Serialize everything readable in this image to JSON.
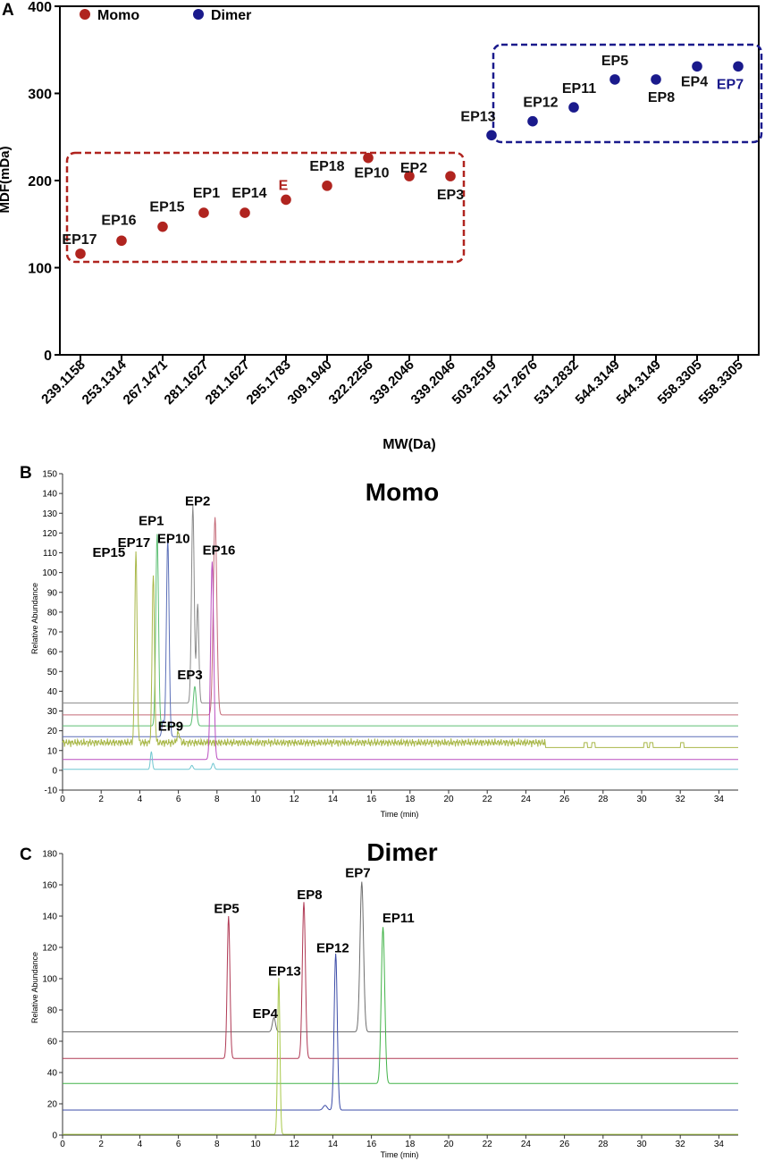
{
  "chart_data": [
    {
      "panel": "A",
      "type": "scatter",
      "xlabel": "MW(Da)",
      "ylabel": "MDF(mDa)",
      "ylim": [
        0,
        400
      ],
      "yticks": [
        "0",
        "100",
        "200",
        "300",
        "400"
      ],
      "categories": [
        "239.1158",
        "253.1314",
        "267.1471",
        "281.1627",
        "281.1627",
        "295.1783",
        "309.1940",
        "322.2256",
        "339.2046",
        "339.2046",
        "503.2519",
        "517.2676",
        "531.2832",
        "544.3149",
        "544.3149",
        "558.3305",
        "558.3305"
      ],
      "legend": [
        {
          "name": "Momo",
          "color": "#b0241f"
        },
        {
          "name": "Dimer",
          "color": "#1a1a8c"
        }
      ],
      "series": [
        {
          "name": "Momo",
          "color": "#b0241f",
          "points": [
            {
              "label": "EP17",
              "x": 0,
              "y": 116
            },
            {
              "label": "EP16",
              "x": 1,
              "y": 131
            },
            {
              "label": "EP15",
              "x": 2,
              "y": 147
            },
            {
              "label": "EP1",
              "x": 3,
              "y": 163
            },
            {
              "label": "EP14",
              "x": 4,
              "y": 163
            },
            {
              "label": "E",
              "x": 5,
              "y": 178
            },
            {
              "label": "EP18",
              "x": 6,
              "y": 194
            },
            {
              "label": "EP10",
              "x": 7,
              "y": 226
            },
            {
              "label": "EP2",
              "x": 8,
              "y": 205
            },
            {
              "label": "EP3",
              "x": 9,
              "y": 205
            }
          ]
        },
        {
          "name": "Dimer",
          "color": "#1a1a8c",
          "points": [
            {
              "label": "EP13",
              "x": 10,
              "y": 252
            },
            {
              "label": "EP12",
              "x": 11,
              "y": 268
            },
            {
              "label": "EP11",
              "x": 12,
              "y": 284
            },
            {
              "label": "EP5",
              "x": 13,
              "y": 316
            },
            {
              "label": "EP8",
              "x": 14,
              "y": 316
            },
            {
              "label": "EP4",
              "x": 15,
              "y": 331
            },
            {
              "label": "EP7",
              "x": 16,
              "y": 331
            }
          ]
        }
      ]
    },
    {
      "panel": "B",
      "type": "line",
      "title": "Momo",
      "xlabel": "Time (min)",
      "ylabel": "Relative Abundance",
      "xlim": [
        0,
        35
      ],
      "ylim": [
        -10,
        150
      ],
      "xticks": [
        "0",
        "2",
        "4",
        "6",
        "8",
        "10",
        "12",
        "14",
        "16",
        "18",
        "20",
        "22",
        "24",
        "26",
        "28",
        "30",
        "32",
        "34"
      ],
      "yticks": [
        "-10",
        "0",
        "10",
        "20",
        "30",
        "40",
        "50",
        "60",
        "70",
        "80",
        "90",
        "100",
        "110",
        "120",
        "130",
        "140",
        "150"
      ],
      "series": [
        {
          "color": "#8a8a8a",
          "baseline": 34,
          "peaks": [
            {
              "t": 6.75,
              "h": 100,
              "w": 0.07
            },
            {
              "t": 7.0,
              "h": 50,
              "w": 0.06
            }
          ]
        },
        {
          "color": "#c46a78",
          "baseline": 28,
          "peaks": [
            {
              "t": 7.9,
              "h": 100,
              "w": 0.09
            }
          ]
        },
        {
          "color": "#5cbf73",
          "baseline": 22.5,
          "peaks": [
            {
              "t": 4.9,
              "h": 97,
              "w": 0.07
            },
            {
              "t": 6.85,
              "h": 20,
              "w": 0.08
            }
          ]
        },
        {
          "color": "#5b6fb8",
          "baseline": 17,
          "peaks": [
            {
              "t": 5.45,
              "h": 100,
              "w": 0.07
            },
            {
              "t": 5.2,
              "h": 8,
              "w": 0.06
            }
          ]
        },
        {
          "color": "#a9b84a",
          "baseline": 14,
          "noise": true,
          "step": 11.5,
          "peaks": [
            {
              "t": 3.8,
              "h": 97,
              "w": 0.06
            },
            {
              "t": 4.7,
              "h": 86,
              "w": 0.06
            },
            {
              "t": 6.0,
              "h": 5,
              "w": 0.07
            }
          ]
        },
        {
          "color": "#bb4fc0",
          "baseline": 5.5,
          "peaks": [
            {
              "t": 7.75,
              "h": 100,
              "w": 0.08
            }
          ]
        },
        {
          "color": "#6fc7d0",
          "baseline": 0.5,
          "peaks": [
            {
              "t": 4.6,
              "h": 9,
              "w": 0.05
            },
            {
              "t": 6.7,
              "h": 2,
              "w": 0.06
            },
            {
              "t": 7.8,
              "h": 3,
              "w": 0.06
            }
          ]
        }
      ],
      "annotations": [
        {
          "label": "EP15",
          "t": 2.4,
          "v": 108
        },
        {
          "label": "EP17",
          "t": 3.7,
          "v": 113
        },
        {
          "label": "EP1",
          "t": 4.6,
          "v": 124
        },
        {
          "label": "EP10",
          "t": 5.75,
          "v": 115
        },
        {
          "label": "EP2",
          "t": 7.0,
          "v": 134
        },
        {
          "label": "EP16",
          "t": 8.1,
          "v": 109
        },
        {
          "label": "EP3",
          "t": 6.6,
          "v": 46
        },
        {
          "label": "EP9",
          "t": 5.6,
          "v": 20
        }
      ]
    },
    {
      "panel": "C",
      "type": "line",
      "title": "Dimer",
      "xlabel": "Time (min)",
      "ylabel": "Relative Abundance",
      "xlim": [
        0,
        35
      ],
      "ylim": [
        0,
        180
      ],
      "xticks": [
        "0",
        "2",
        "4",
        "6",
        "8",
        "10",
        "12",
        "14",
        "16",
        "18",
        "20",
        "22",
        "24",
        "26",
        "28",
        "30",
        "32",
        "34"
      ],
      "yticks": [
        "0",
        "20",
        "40",
        "60",
        "80",
        "100",
        "120",
        "140",
        "160",
        "180"
      ],
      "series": [
        {
          "color": "#6e6e6e",
          "baseline": 66,
          "peaks": [
            {
              "t": 15.5,
              "h": 96,
              "w": 0.09
            },
            {
              "t": 10.95,
              "h": 9,
              "w": 0.08
            }
          ]
        },
        {
          "color": "#b03a55",
          "baseline": 49,
          "peaks": [
            {
              "t": 8.6,
              "h": 91,
              "w": 0.07
            },
            {
              "t": 12.5,
              "h": 100,
              "w": 0.08
            }
          ]
        },
        {
          "color": "#42b348",
          "baseline": 33,
          "peaks": [
            {
              "t": 16.6,
              "h": 100,
              "w": 0.09
            }
          ]
        },
        {
          "color": "#3d4da8",
          "baseline": 16,
          "peaks": [
            {
              "t": 14.15,
              "h": 100,
              "w": 0.08
            },
            {
              "t": 13.6,
              "h": 3,
              "w": 0.1
            }
          ]
        },
        {
          "color": "#a8c84a",
          "baseline": 0.5,
          "peaks": [
            {
              "t": 11.2,
              "h": 100,
              "w": 0.06
            }
          ]
        }
      ],
      "annotations": [
        {
          "label": "EP5",
          "t": 8.5,
          "v": 142
        },
        {
          "label": "EP4",
          "t": 10.5,
          "v": 75
        },
        {
          "label": "EP13",
          "t": 11.5,
          "v": 102
        },
        {
          "label": "EP8",
          "t": 12.8,
          "v": 151
        },
        {
          "label": "EP12",
          "t": 14.0,
          "v": 117
        },
        {
          "label": "EP7",
          "t": 15.3,
          "v": 165
        },
        {
          "label": "EP11",
          "t": 17.4,
          "v": 136
        }
      ]
    }
  ],
  "panels": {
    "a": {
      "letter": "A"
    },
    "b": {
      "letter": "B"
    },
    "c": {
      "letter": "C"
    }
  }
}
